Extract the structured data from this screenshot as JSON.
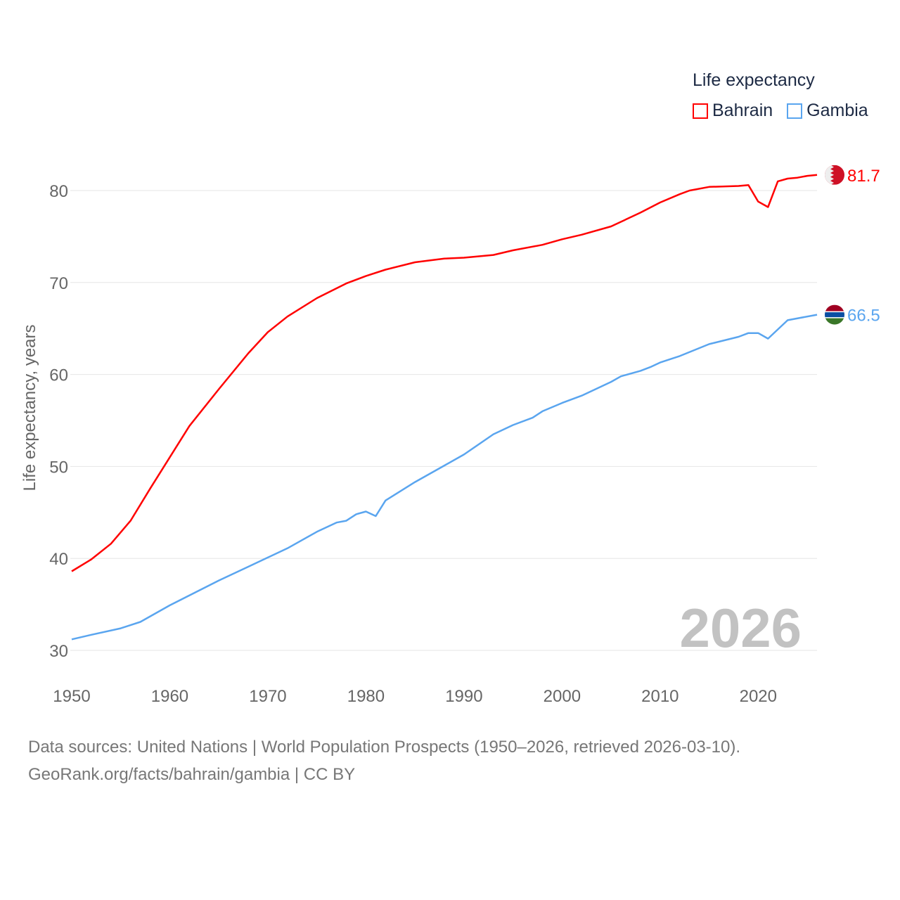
{
  "chart_data": {
    "type": "line",
    "ylabel": "Life expectancy, years",
    "xlabel": "",
    "ylim": [
      30,
      80
    ],
    "xlim": [
      1950,
      2026
    ],
    "yticks": [
      "30",
      "40",
      "50",
      "60",
      "70",
      "80"
    ],
    "xticks": [
      "1950",
      "1960",
      "1970",
      "1980",
      "1990",
      "2000",
      "2010",
      "2020"
    ],
    "grid": true,
    "legend_title": "Life expectancy",
    "legend_placement": "top-right",
    "year_label": "2026",
    "series": [
      {
        "name": "Bahrain",
        "color": "#ff0000",
        "end_label": "81.7",
        "x": [
          1950,
          1952,
          1954,
          1956,
          1958,
          1960,
          1962,
          1965,
          1968,
          1970,
          1972,
          1975,
          1978,
          1980,
          1982,
          1985,
          1988,
          1990,
          1993,
          1995,
          1998,
          2000,
          2002,
          2005,
          2008,
          2010,
          2012,
          2013,
          2015,
          2018,
          2019,
          2020,
          2021,
          2022,
          2023,
          2024,
          2025,
          2026
        ],
        "y": [
          38.6,
          39.9,
          41.6,
          44.1,
          47.6,
          51.0,
          54.4,
          58.4,
          62.3,
          64.6,
          66.3,
          68.3,
          69.9,
          70.7,
          71.4,
          72.2,
          72.6,
          72.7,
          73.0,
          73.5,
          74.1,
          74.7,
          75.2,
          76.1,
          77.6,
          78.7,
          79.6,
          80.0,
          80.4,
          80.5,
          80.6,
          78.8,
          78.2,
          81.0,
          81.3,
          81.4,
          81.6,
          81.7
        ]
      },
      {
        "name": "Gambia",
        "color": "#5aa5ef",
        "end_label": "66.5",
        "x": [
          1950,
          1952,
          1955,
          1957,
          1960,
          1965,
          1968,
          1970,
          1972,
          1975,
          1977,
          1978,
          1979,
          1980,
          1981,
          1982,
          1985,
          1988,
          1990,
          1993,
          1995,
          1997,
          1998,
          2000,
          2002,
          2005,
          2006,
          2008,
          2009,
          2010,
          2012,
          2015,
          2018,
          2019,
          2020,
          2021,
          2023,
          2026
        ],
        "y": [
          31.2,
          31.7,
          32.4,
          33.1,
          34.9,
          37.6,
          39.1,
          40.1,
          41.1,
          42.9,
          43.9,
          44.1,
          44.8,
          45.1,
          44.6,
          46.3,
          48.3,
          50.1,
          51.3,
          53.5,
          54.5,
          55.3,
          56.0,
          56.9,
          57.7,
          59.2,
          59.8,
          60.4,
          60.8,
          61.3,
          62.0,
          63.3,
          64.1,
          64.5,
          64.5,
          63.9,
          65.9,
          66.5
        ]
      }
    ]
  },
  "footer": {
    "line1": "Data sources: United Nations | World Population Prospects (1950–2026, retrieved 2026-03-10).",
    "line2": "GeoRank.org/facts/bahrain/gambia | CC BY"
  }
}
